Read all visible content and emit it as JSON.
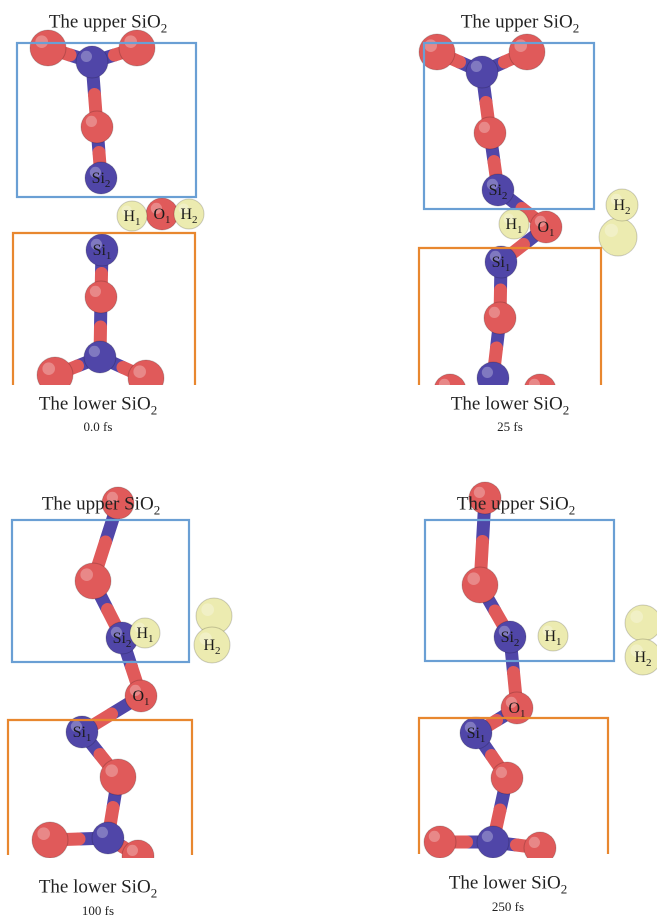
{
  "colors": {
    "upper_box": "#6a9fd4",
    "lower_box": "#e8872f",
    "silicon": "#5046a8",
    "oxygen": "#e05a5a",
    "hydrogen": "#ecebb0"
  },
  "panels": [
    {
      "title_main": "The upper SiO",
      "title_sub": "2",
      "bottom_main": "The lower SiO",
      "bottom_sub": "2",
      "time": "0.0 fs",
      "atoms": [
        {
          "el": "Si",
          "sub": "2"
        },
        {
          "el": "Si",
          "sub": "1"
        },
        {
          "el": "O",
          "sub": "1"
        },
        {
          "el": "H",
          "sub": "1"
        },
        {
          "el": "H",
          "sub": "2"
        }
      ]
    },
    {
      "title_main": "The upper SiO",
      "title_sub": "2",
      "bottom_main": "The lower SiO",
      "bottom_sub": "2",
      "time": "25 fs",
      "atoms": [
        {
          "el": "Si",
          "sub": "2"
        },
        {
          "el": "Si",
          "sub": "1"
        },
        {
          "el": "O",
          "sub": "1"
        },
        {
          "el": "H",
          "sub": "1"
        },
        {
          "el": "H",
          "sub": "2"
        }
      ]
    },
    {
      "title_main": "The upper SiO",
      "title_sub": "2",
      "bottom_main": "The lower SiO",
      "bottom_sub": "2",
      "time": "100 fs",
      "atoms": [
        {
          "el": "Si",
          "sub": "2"
        },
        {
          "el": "Si",
          "sub": "1"
        },
        {
          "el": "O",
          "sub": "1"
        },
        {
          "el": "H",
          "sub": "1"
        },
        {
          "el": "H",
          "sub": "2"
        }
      ]
    },
    {
      "title_main": "The upper SiO",
      "title_sub": "2",
      "bottom_main": "The lower SiO",
      "bottom_sub": "2",
      "time": "250 fs",
      "atoms": [
        {
          "el": "Si",
          "sub": "2"
        },
        {
          "el": "Si",
          "sub": "1"
        },
        {
          "el": "O",
          "sub": "1"
        },
        {
          "el": "H",
          "sub": "1"
        },
        {
          "el": "H",
          "sub": "2"
        }
      ]
    }
  ]
}
